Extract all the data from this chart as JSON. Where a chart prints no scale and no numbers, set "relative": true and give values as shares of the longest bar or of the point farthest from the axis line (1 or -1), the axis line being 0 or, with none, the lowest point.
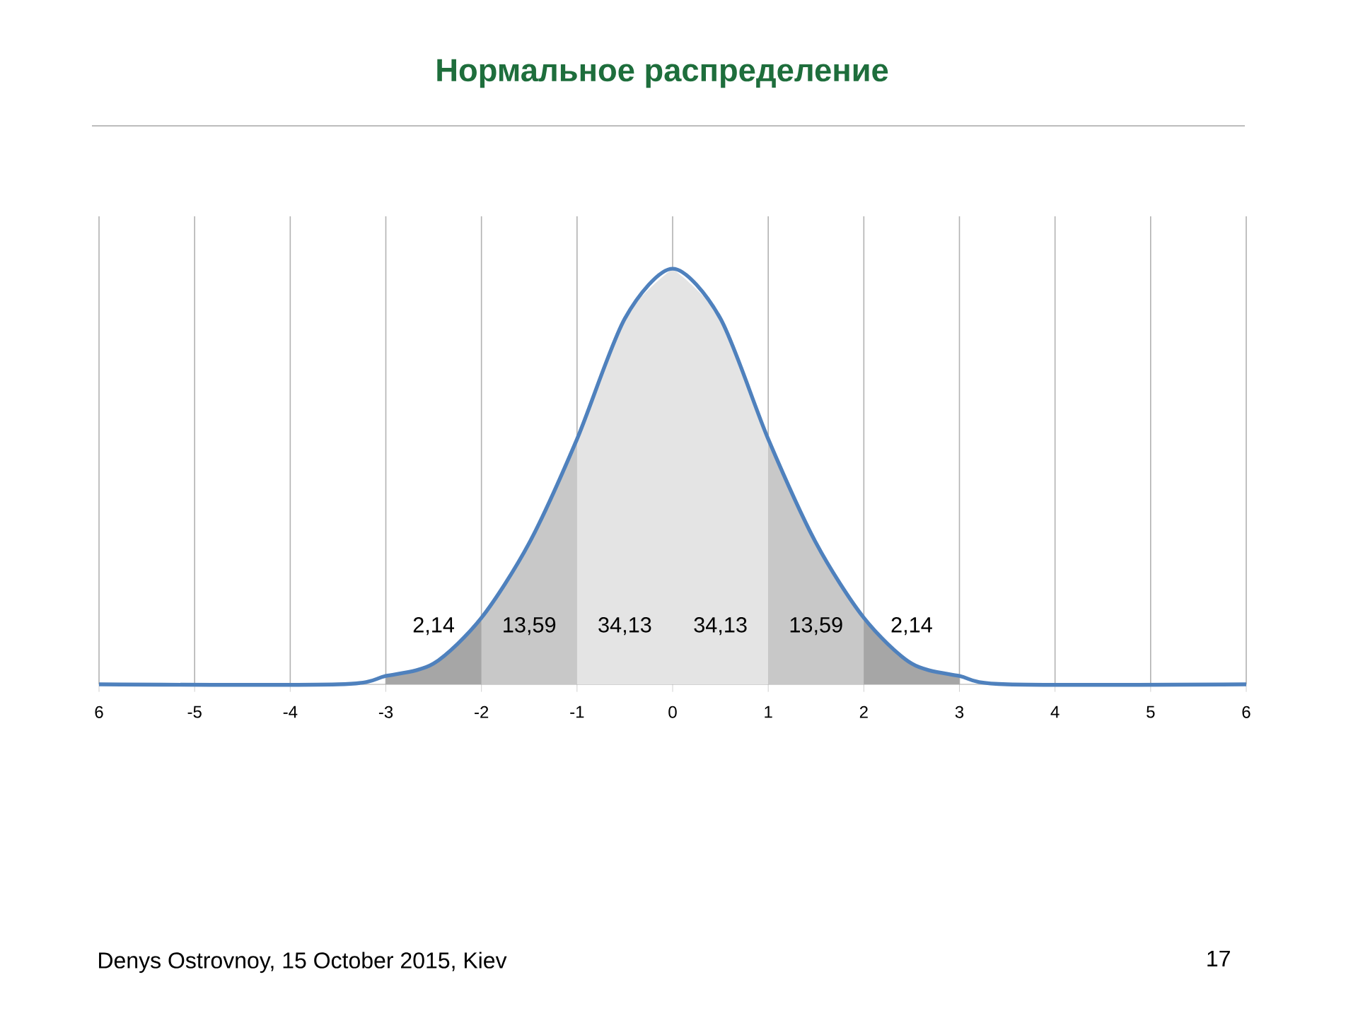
{
  "chart_data": {
    "type": "line",
    "title": "Нормальное распределение",
    "relative": true,
    "xlim": [
      -6,
      6
    ],
    "xticks": [
      {
        "value": -6,
        "label": "6"
      },
      -5,
      -4,
      -3,
      -2,
      -1,
      0,
      1,
      2,
      3,
      4,
      5,
      6
    ],
    "grid": "x",
    "series": [
      {
        "type": "area",
        "color": "#a6a6a6",
        "x": [
          -3,
          -2.5,
          -2
        ],
        "values": [
          0.02,
          0.05,
          0.16
        ]
      },
      {
        "type": "area",
        "color": "#c8c8c8",
        "x": [
          -2,
          -1.5,
          -1
        ],
        "values": [
          0.16,
          0.34,
          0.59
        ]
      },
      {
        "type": "area",
        "color": "#e4e4e4",
        "x": [
          -1,
          -0.5,
          0
        ],
        "values": [
          0.59,
          0.88,
          1
        ]
      },
      {
        "type": "area",
        "color": "#e4e4e4",
        "x": [
          0,
          0.5,
          1
        ],
        "values": [
          1,
          0.88,
          0.59
        ]
      },
      {
        "type": "area",
        "color": "#c8c8c8",
        "x": [
          1,
          1.5,
          2
        ],
        "values": [
          0.59,
          0.34,
          0.16
        ]
      },
      {
        "type": "area",
        "color": "#a6a6a6",
        "x": [
          2,
          2.5,
          3
        ],
        "values": [
          0.16,
          0.05,
          0.02
        ]
      },
      {
        "color": "#4f81bd",
        "x": [
          -6,
          -3.5,
          -3,
          -2.5,
          -2,
          -1.5,
          -1,
          -0.5,
          0,
          0.5,
          1,
          1.5,
          2,
          2.5,
          3,
          3.5,
          6
        ],
        "values": [
          0,
          0,
          0.02,
          0.05,
          0.16,
          0.34,
          0.59,
          0.88,
          1,
          0.88,
          0.59,
          0.34,
          0.16,
          0.05,
          0.02,
          0,
          0
        ]
      }
    ],
    "annotations": [
      "2,14",
      "13,59",
      "34,13",
      "34,13",
      "13,59",
      "2,14",
      "Denys Ostrovnoy, 15 October 2015, Kiev",
      "17"
    ]
  }
}
